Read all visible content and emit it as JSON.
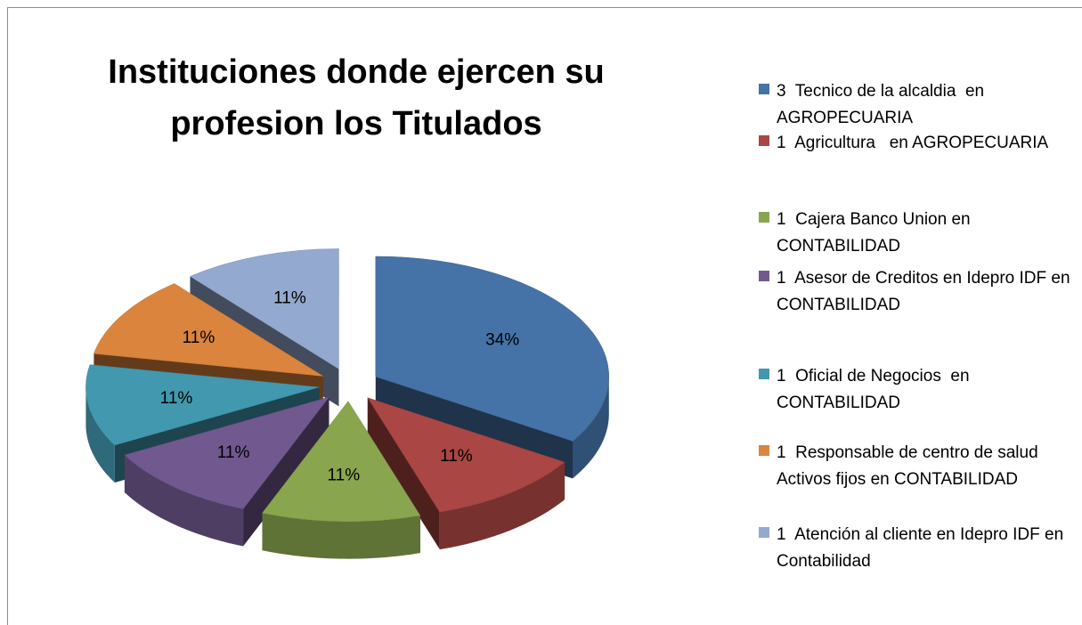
{
  "chart_data": {
    "type": "pie",
    "title": "Instituciones donde ejercen su profesion los Titulados",
    "categories": [
      "3  Tecnico de la alcaldia  en AGROPECUARIA",
      "1  Agricultura   en AGROPECUARIA",
      "1  Cajera Banco Union en CONTABILIDAD",
      "1  Asesor de Creditos en Idepro IDF en   CONTABILIDAD",
      "1  Oficial de Negocios  en CONTABILIDAD",
      "1  Responsable de centro de salud  Activos fijos en CONTABILIDAD",
      "1  Atención al cliente en Idepro IDF en Contabilidad"
    ],
    "values": [
      34,
      11,
      11,
      11,
      11,
      11,
      11
    ],
    "value_labels": [
      "34%",
      "11%",
      "11%",
      "11%",
      "11%",
      "11%",
      "11%"
    ],
    "colors": [
      "#4572a7",
      "#aa4643",
      "#89a54e",
      "#71588f",
      "#4198af",
      "#db843d",
      "#93a9cf"
    ],
    "legend": "right"
  }
}
